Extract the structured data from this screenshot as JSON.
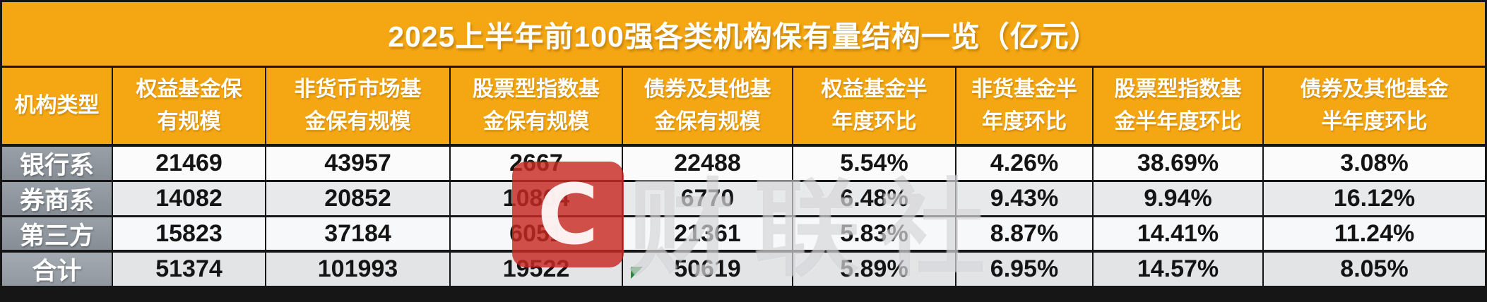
{
  "title": "2025上半年前100强各类机构保有量结构一览（亿元）",
  "table": {
    "corner_header": "机构类型",
    "columns": [
      "权益基金保\n有规模",
      "非货币市场基\n金保有规模",
      "股票型指数基\n金保有规模",
      "债券及其他基\n金保有规模",
      "权益基金半\n年度环比",
      "非货基金半\n年度环比",
      "股票型指数基\n金半年度环比",
      "债券及其他基金\n半年度环比"
    ],
    "rows": [
      {
        "label": "银行系",
        "values": [
          "21469",
          "43957",
          "2667",
          "22488",
          "5.54%",
          "4.26%",
          "38.69%",
          "3.08%"
        ]
      },
      {
        "label": "券商系",
        "values": [
          "14082",
          "20852",
          "10804",
          "6770",
          "6.48%",
          "9.43%",
          "9.94%",
          "16.12%"
        ]
      },
      {
        "label": "第三方",
        "values": [
          "15823",
          "37184",
          "6051",
          "21361",
          "5.83%",
          "8.87%",
          "14.41%",
          "11.24%"
        ]
      },
      {
        "label": "合计",
        "values": [
          "51374",
          "101993",
          "19522",
          "50619",
          "5.89%",
          "6.95%",
          "14.57%",
          "8.05%"
        ]
      }
    ]
  },
  "watermark": {
    "logo_letter": "C",
    "text": "财联社"
  },
  "chart_data": {
    "type": "table",
    "title": "2025上半年前100强各类机构保有量结构一览（亿元）",
    "unit": "亿元",
    "row_header": "机构类型",
    "columns": [
      "权益基金保有规模",
      "非货币市场基金保有规模",
      "股票型指数基金保有规模",
      "债券及其他基金保有规模",
      "权益基金半年度环比",
      "非货基金半年度环比",
      "股票型指数基金半年度环比",
      "债券及其他基金半年度环比"
    ],
    "rows": [
      {
        "机构类型": "银行系",
        "values": [
          21469,
          43957,
          2667,
          22488,
          "5.54%",
          "4.26%",
          "38.69%",
          "3.08%"
        ]
      },
      {
        "机构类型": "券商系",
        "values": [
          14082,
          20852,
          10804,
          6770,
          "6.48%",
          "9.43%",
          "9.94%",
          "16.12%"
        ]
      },
      {
        "机构类型": "第三方",
        "values": [
          15823,
          37184,
          6051,
          21361,
          "5.83%",
          "8.87%",
          "14.41%",
          "11.24%"
        ]
      },
      {
        "机构类型": "合计",
        "values": [
          51374,
          101993,
          19522,
          50619,
          "5.89%",
          "6.95%",
          "14.57%",
          "8.05%"
        ]
      }
    ]
  },
  "colors": {
    "header_bg": "#F5A713",
    "header_text": "#FFFFFF",
    "label_cell_bg": "#8E949B",
    "row_light": "#FBFBFB",
    "row_gray": "#E7E9EB",
    "border": "#161616",
    "watermark_red": "#C72A22",
    "flag_green": "#1F8A3B"
  }
}
